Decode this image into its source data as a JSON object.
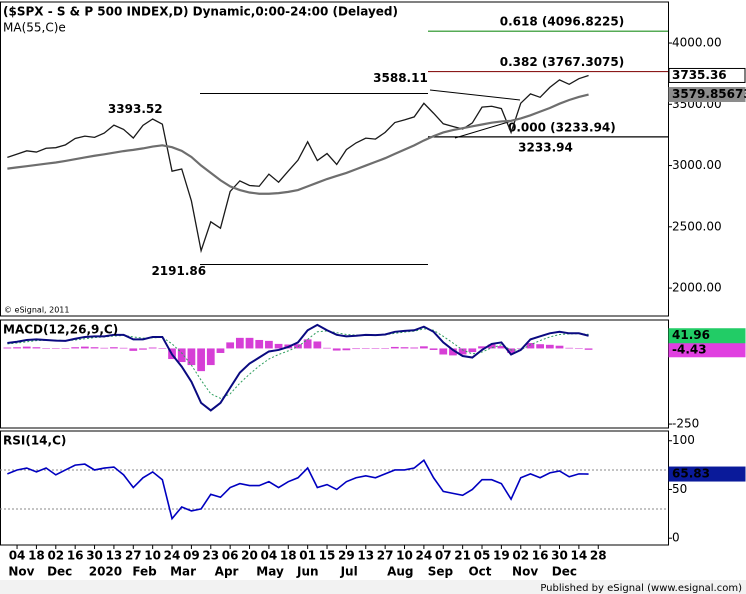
{
  "chart_data": [
    {
      "type": "line",
      "title": "($SPX - S & P 500 INDEX,D) Dynamic,0:00-24:00 (Delayed)",
      "subtitle": "MA(55,C)e",
      "note": "© eSignal, 2011",
      "x": [
        -1,
        0,
        1,
        2,
        3,
        4,
        5,
        6,
        7,
        8,
        9,
        10,
        11,
        12,
        13,
        14,
        15,
        16,
        17,
        18,
        19,
        20,
        21,
        22,
        23,
        24,
        25,
        26,
        27,
        28,
        29,
        30,
        31,
        32,
        33,
        34,
        35,
        36,
        37,
        38,
        39,
        40,
        41,
        42,
        43,
        44,
        45,
        46,
        47,
        48,
        49,
        50,
        51,
        52,
        53,
        54,
        55,
        56,
        57,
        58,
        59
      ],
      "xlim": [
        -1.76,
        67.2
      ],
      "ylim": [
        1772,
        4335
      ],
      "yticks": [
        {
          "value": 2000,
          "label": "2000.00"
        },
        {
          "value": 2500,
          "label": "2500.00"
        },
        {
          "value": 3000,
          "label": "3000.00"
        },
        {
          "value": 3500,
          "label": "3500.00"
        },
        {
          "value": 4000,
          "label": "4000.00"
        }
      ],
      "series": [
        {
          "color": "#1a1a1a",
          "width": 1.3,
          "label_fill": "#ffffff",
          "label_text": "#000000",
          "values": [
            3067,
            3093,
            3120,
            3110,
            3141,
            3146,
            3169,
            3221,
            3240,
            3230,
            3265,
            3330,
            3295,
            3225,
            3328,
            3380,
            3338,
            2954,
            2972,
            2711,
            2305,
            2541,
            2489,
            2789,
            2875,
            2837,
            2831,
            2930,
            2864,
            2955,
            3044,
            3194,
            3041,
            3098,
            3009,
            3130,
            3185,
            3224,
            3216,
            3271,
            3351,
            3373,
            3397,
            3508,
            3427,
            3341,
            3319,
            3298,
            3348,
            3477,
            3484,
            3465,
            3270,
            3509,
            3585,
            3557,
            3638,
            3699,
            3663,
            3709,
            3735.36
          ]
        },
        {
          "color": "#6e6e6e",
          "width": 2.2,
          "label_fill": "#8c8c8c",
          "label_text": "#ffffff",
          "values": [
            2975,
            2985,
            2995,
            3005,
            3015,
            3025,
            3038,
            3052,
            3066,
            3080,
            3092,
            3105,
            3118,
            3128,
            3140,
            3155,
            3165,
            3150,
            3120,
            3070,
            3000,
            2940,
            2880,
            2830,
            2800,
            2780,
            2770,
            2770,
            2775,
            2785,
            2800,
            2830,
            2860,
            2890,
            2915,
            2940,
            2970,
            3000,
            3030,
            3060,
            3095,
            3130,
            3165,
            3205,
            3240,
            3270,
            3290,
            3305,
            3320,
            3335,
            3350,
            3360,
            3365,
            3385,
            3410,
            3440,
            3470,
            3505,
            3535,
            3560,
            3579.85673
          ]
        }
      ],
      "annotations": [
        {
          "value": 3393.52,
          "x": 15.3
        },
        {
          "value": 3588.11,
          "x": 43.3
        },
        {
          "value": 2191.86,
          "x": 20
        },
        {
          "value": 3233.94,
          "x": 46.4
        }
      ],
      "fib_levels": [
        {
          "text": "0.618 (4096.8225)",
          "value": 4096.8225,
          "color": "#1f8f1f"
        },
        {
          "text": "0.382 (3767.3075)",
          "value": 3767.3075,
          "color": "#8b1a1a"
        },
        {
          "text": "0.000 (3233.94)",
          "value": 3233.94,
          "color": "#000000"
        }
      ]
    },
    {
      "type": "line",
      "title": "MACD(12,26,9,C)",
      "x": [
        -1,
        0,
        1,
        2,
        3,
        4,
        5,
        6,
        7,
        8,
        9,
        10,
        11,
        12,
        13,
        14,
        15,
        16,
        17,
        18,
        19,
        20,
        21,
        22,
        23,
        24,
        25,
        26,
        27,
        28,
        29,
        30,
        31,
        32,
        33,
        34,
        35,
        36,
        37,
        38,
        39,
        40,
        41,
        42,
        43,
        44,
        45,
        46,
        47,
        48,
        49,
        50,
        51,
        52,
        53,
        54,
        55,
        56,
        57,
        58,
        59
      ],
      "xlim": [
        -1.76,
        67.2
      ],
      "ylim": [
        -263,
        94
      ],
      "yticks": [
        -250
      ],
      "series": [
        {
          "style": "histogram",
          "color": "#d63fd6",
          "label_fill": "#e040e0",
          "label_text": "#ffffff",
          "values": [
            3,
            4,
            6,
            4,
            1,
            -1,
            -1,
            4,
            6,
            4,
            2,
            4,
            2,
            -8,
            -4,
            3,
            1,
            -35,
            -45,
            -55,
            -75,
            -55,
            -15,
            20,
            35,
            35,
            28,
            25,
            15,
            13,
            14,
            30,
            23,
            2,
            -7,
            -6,
            -2,
            1,
            0,
            1,
            5,
            4,
            3,
            7,
            -5,
            -20,
            -23,
            -20,
            -12,
            7,
            13,
            8,
            -15,
            0,
            18,
            14,
            12,
            9,
            2,
            1,
            -4.43
          ]
        },
        {
          "color": "#2e9e5e",
          "width": 1,
          "dash": "2,2",
          "values": [
            15,
            18,
            22,
            26,
            27,
            27,
            26,
            28,
            32,
            36,
            38,
            41,
            43,
            38,
            34,
            35,
            37,
            15,
            -15,
            -55,
            -105,
            -150,
            -165,
            -150,
            -115,
            -85,
            -58,
            -35,
            -20,
            -8,
            6,
            30,
            55,
            58,
            52,
            46,
            44,
            44,
            44,
            45,
            50,
            54,
            57,
            65,
            60,
            40,
            18,
            -5,
            -18,
            -12,
            2,
            12,
            -5,
            -5,
            12,
            26,
            38,
            46,
            48,
            49,
            46.39
          ]
        },
        {
          "color": "#0a0a80",
          "width": 2,
          "label_fill": "#22cc66",
          "label_text": "#000000",
          "values": [
            18,
            22,
            28,
            30,
            28,
            26,
            25,
            32,
            38,
            40,
            40,
            45,
            45,
            30,
            30,
            38,
            38,
            -20,
            -60,
            -110,
            -180,
            -205,
            -180,
            -130,
            -80,
            -50,
            -30,
            -10,
            -5,
            5,
            20,
            60,
            78,
            60,
            45,
            40,
            42,
            45,
            44,
            46,
            55,
            58,
            60,
            72,
            55,
            20,
            -5,
            -25,
            -30,
            -5,
            15,
            20,
            -20,
            -5,
            30,
            40,
            50,
            55,
            50,
            50,
            41.96
          ]
        }
      ]
    },
    {
      "type": "line",
      "title": "RSI(14,C)",
      "x": [
        -1,
        0,
        1,
        2,
        3,
        4,
        5,
        6,
        7,
        8,
        9,
        10,
        11,
        12,
        13,
        14,
        15,
        16,
        17,
        18,
        19,
        20,
        21,
        22,
        23,
        24,
        25,
        26,
        27,
        28,
        29,
        30,
        31,
        32,
        33,
        34,
        35,
        36,
        37,
        38,
        39,
        40,
        41,
        42,
        43,
        44,
        45,
        46,
        47,
        48,
        49,
        50,
        51,
        52,
        53,
        54,
        55,
        56,
        57,
        58,
        59
      ],
      "xlim": [
        -1.76,
        67.2
      ],
      "ylim": [
        -7,
        110
      ],
      "yticks": [
        0,
        50,
        100
      ],
      "levels": [
        30,
        70
      ],
      "series": [
        {
          "color": "#0000c0",
          "width": 1.6,
          "label_fill": "#0a1a9a",
          "label_text": "#ffffff",
          "values": [
            66,
            70,
            72,
            68,
            72,
            65,
            70,
            75,
            76,
            70,
            72,
            73,
            65,
            52,
            62,
            68,
            60,
            20,
            32,
            28,
            30,
            45,
            42,
            52,
            56,
            54,
            54,
            58,
            52,
            58,
            62,
            72,
            52,
            55,
            50,
            58,
            62,
            64,
            62,
            66,
            70,
            70,
            72,
            80,
            62,
            48,
            46,
            44,
            50,
            60,
            60,
            56,
            40,
            62,
            66,
            62,
            67,
            69,
            63,
            66,
            65.83
          ]
        }
      ],
      "xticks": [
        {
          "value": 0,
          "label": "04"
        },
        {
          "value": 2,
          "label": "18"
        },
        {
          "value": 4,
          "label": "02"
        },
        {
          "value": 6,
          "label": "16"
        },
        {
          "value": 8,
          "label": "30"
        },
        {
          "value": 10,
          "label": "13"
        },
        {
          "value": 12,
          "label": "27"
        },
        {
          "value": 14,
          "label": "10"
        },
        {
          "value": 16,
          "label": "24"
        },
        {
          "value": 18,
          "label": "09"
        },
        {
          "value": 20,
          "label": "23"
        },
        {
          "value": 22,
          "label": "06"
        },
        {
          "value": 24,
          "label": "20"
        },
        {
          "value": 26,
          "label": "04"
        },
        {
          "value": 28,
          "label": "18"
        },
        {
          "value": 30,
          "label": "01"
        },
        {
          "value": 32,
          "label": "15"
        },
        {
          "value": 34,
          "label": "29"
        },
        {
          "value": 36,
          "label": "13"
        },
        {
          "value": 38,
          "label": "27"
        },
        {
          "value": 40,
          "label": "10"
        },
        {
          "value": 42,
          "label": "24"
        },
        {
          "value": 44,
          "label": "07"
        },
        {
          "value": 46,
          "label": "21"
        },
        {
          "value": 48,
          "label": "05"
        },
        {
          "value": 50,
          "label": "19"
        },
        {
          "value": 52,
          "label": "02"
        },
        {
          "value": 54,
          "label": "16"
        },
        {
          "value": 56,
          "label": "30"
        },
        {
          "value": 58,
          "label": "14"
        },
        {
          "value": 60,
          "label": "28"
        }
      ],
      "months": [
        {
          "value": -0.9,
          "label": "Nov"
        },
        {
          "value": 3.1,
          "label": "Dec"
        },
        {
          "value": 7.4,
          "label": "2020"
        },
        {
          "value": 11.9,
          "label": "Feb"
        },
        {
          "value": 15.8,
          "label": "Mar"
        },
        {
          "value": 20.4,
          "label": "Apr"
        },
        {
          "value": 24.7,
          "label": "May"
        },
        {
          "value": 28.9,
          "label": "Jun"
        },
        {
          "value": 33.4,
          "label": "Jul"
        },
        {
          "value": 38.2,
          "label": "Aug"
        },
        {
          "value": 42.4,
          "label": "Sep"
        },
        {
          "value": 46.6,
          "label": "Oct"
        },
        {
          "value": 51.1,
          "label": "Nov"
        },
        {
          "value": 55.2,
          "label": "Dec"
        }
      ]
    }
  ],
  "footer": "Published by eSignal (www.esignal.com)"
}
